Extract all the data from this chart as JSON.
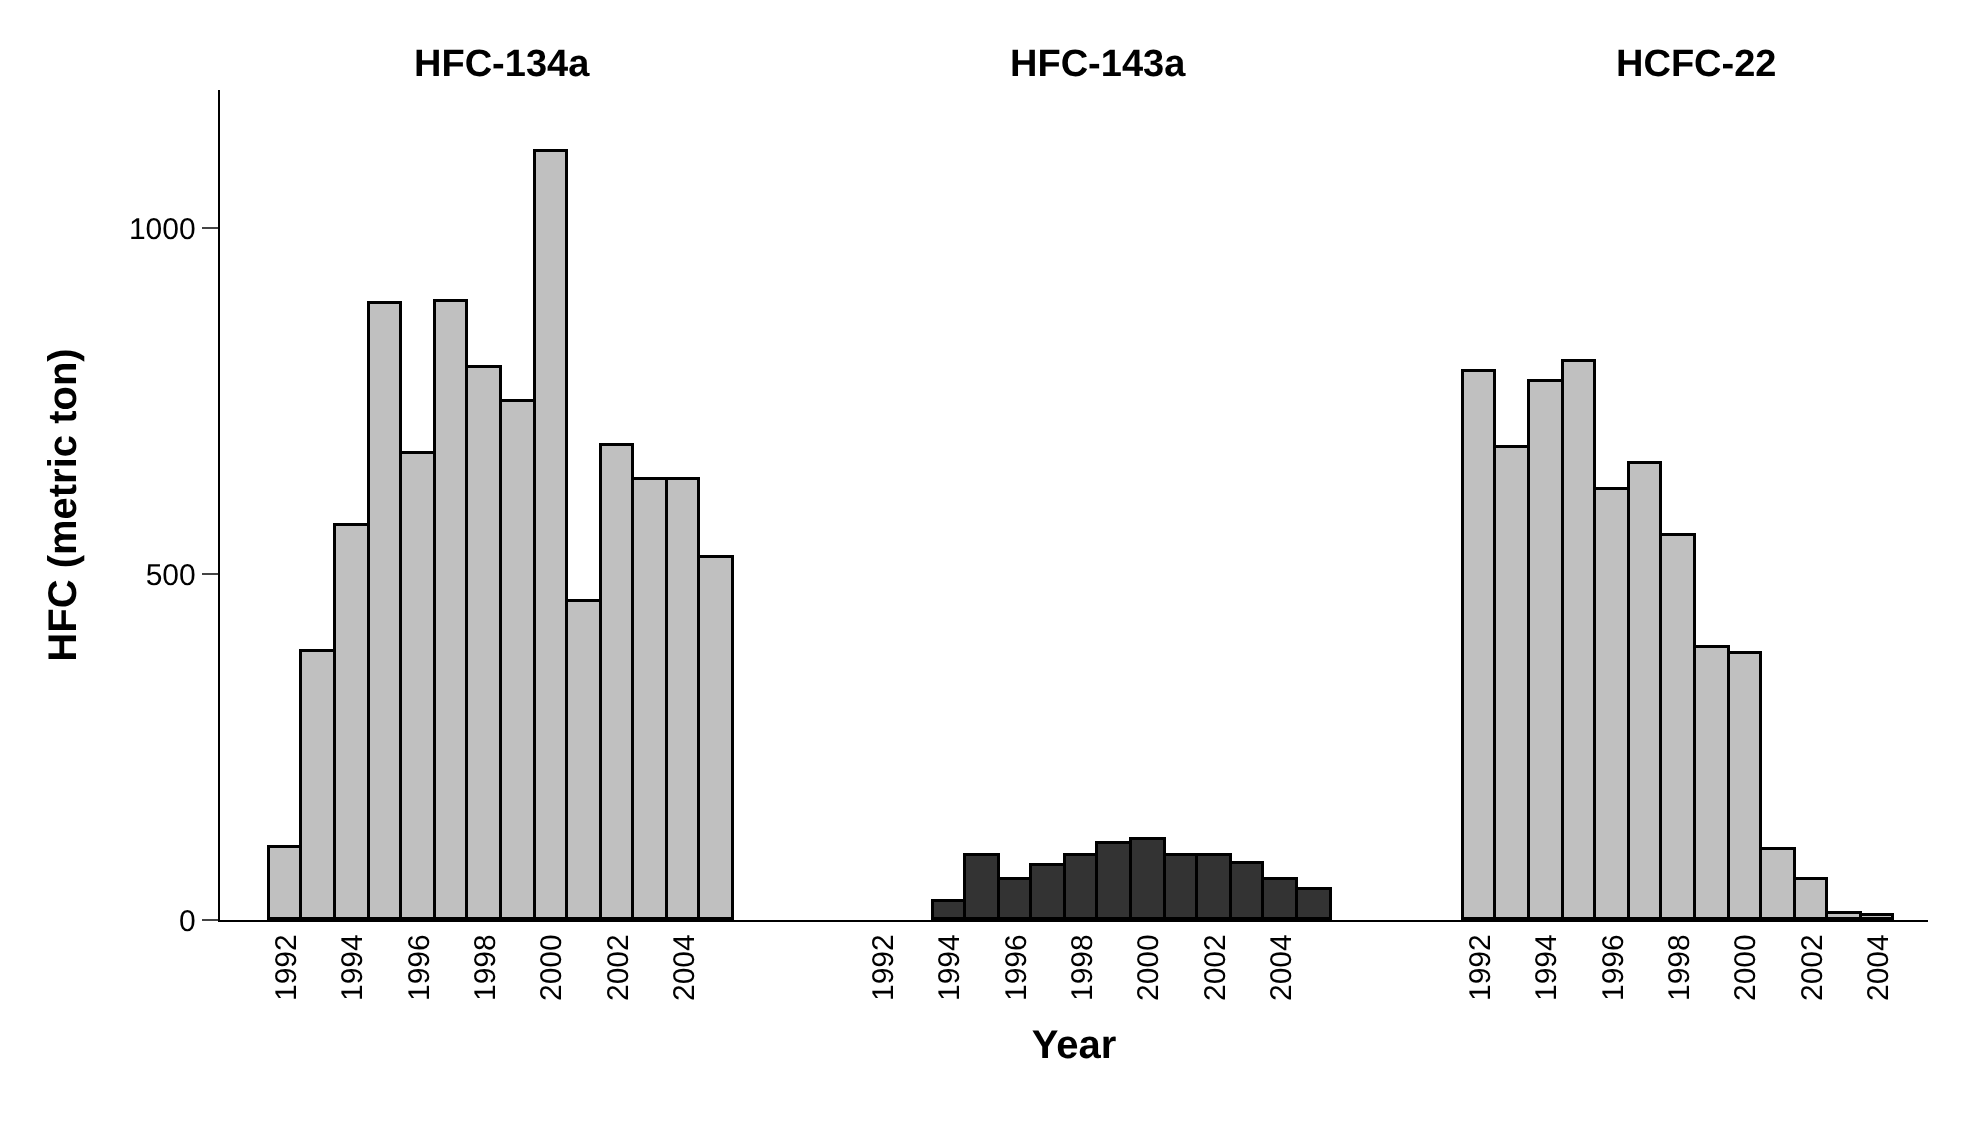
{
  "chart_data": {
    "type": "bar",
    "xlabel": "Year",
    "ylabel": "HFC (metric ton)",
    "categories": [
      "1992",
      null,
      "1994",
      null,
      "1996",
      null,
      "1998",
      null,
      "2000",
      null,
      "2002",
      null,
      "2004",
      null,
      null,
      null,
      null,
      null,
      "1992",
      null,
      "1994",
      null,
      "1996",
      null,
      "1998",
      null,
      "2000",
      null,
      "2002",
      null,
      "2004",
      null,
      null,
      null,
      null,
      null,
      "1992",
      null,
      "1994",
      null,
      "1996",
      null,
      "1998",
      null,
      "2000",
      null,
      "2002",
      null,
      "2004",
      null
    ],
    "series": [
      {
        "color": "#c0c0c0",
        "values": [
          103,
          387,
          571,
          890,
          675,
          894,
          797,
          750,
          1110,
          460,
          686,
          637,
          637,
          522,
          null,
          null,
          null,
          null,
          null,
          null,
          null,
          null,
          null,
          null,
          null,
          null,
          null,
          null,
          null,
          null,
          null,
          null,
          null,
          null,
          null,
          null,
          null,
          null,
          null,
          null,
          null,
          null,
          null,
          null,
          null,
          null,
          null,
          null,
          null,
          null
        ]
      },
      {
        "color": "#333333",
        "values": [
          null,
          null,
          null,
          null,
          null,
          null,
          null,
          null,
          null,
          null,
          null,
          null,
          null,
          null,
          null,
          null,
          null,
          null,
          null,
          null,
          25,
          92,
          58,
          77,
          92,
          110,
          116,
          92,
          92,
          82,
          58,
          43,
          null,
          null,
          null,
          null,
          null,
          null,
          null,
          null,
          null,
          null,
          null,
          null,
          null,
          null,
          null,
          null,
          null,
          null
        ]
      },
      {
        "color": "#c0c0c0",
        "values": [
          null,
          null,
          null,
          null,
          null,
          null,
          null,
          null,
          null,
          null,
          null,
          null,
          null,
          null,
          null,
          null,
          null,
          null,
          null,
          null,
          null,
          null,
          null,
          null,
          null,
          null,
          null,
          null,
          null,
          null,
          null,
          null,
          null,
          null,
          null,
          null,
          793,
          681,
          779,
          808,
          623,
          658,
          555,
          392,
          384,
          101,
          58,
          10,
          5,
          null
        ]
      }
    ],
    "annotations": [
      "HFC-134a",
      "HFC-143a",
      "HCFC-22"
    ],
    "ylim": [
      0,
      1200
    ],
    "yticks": [
      0,
      500,
      1000
    ]
  }
}
